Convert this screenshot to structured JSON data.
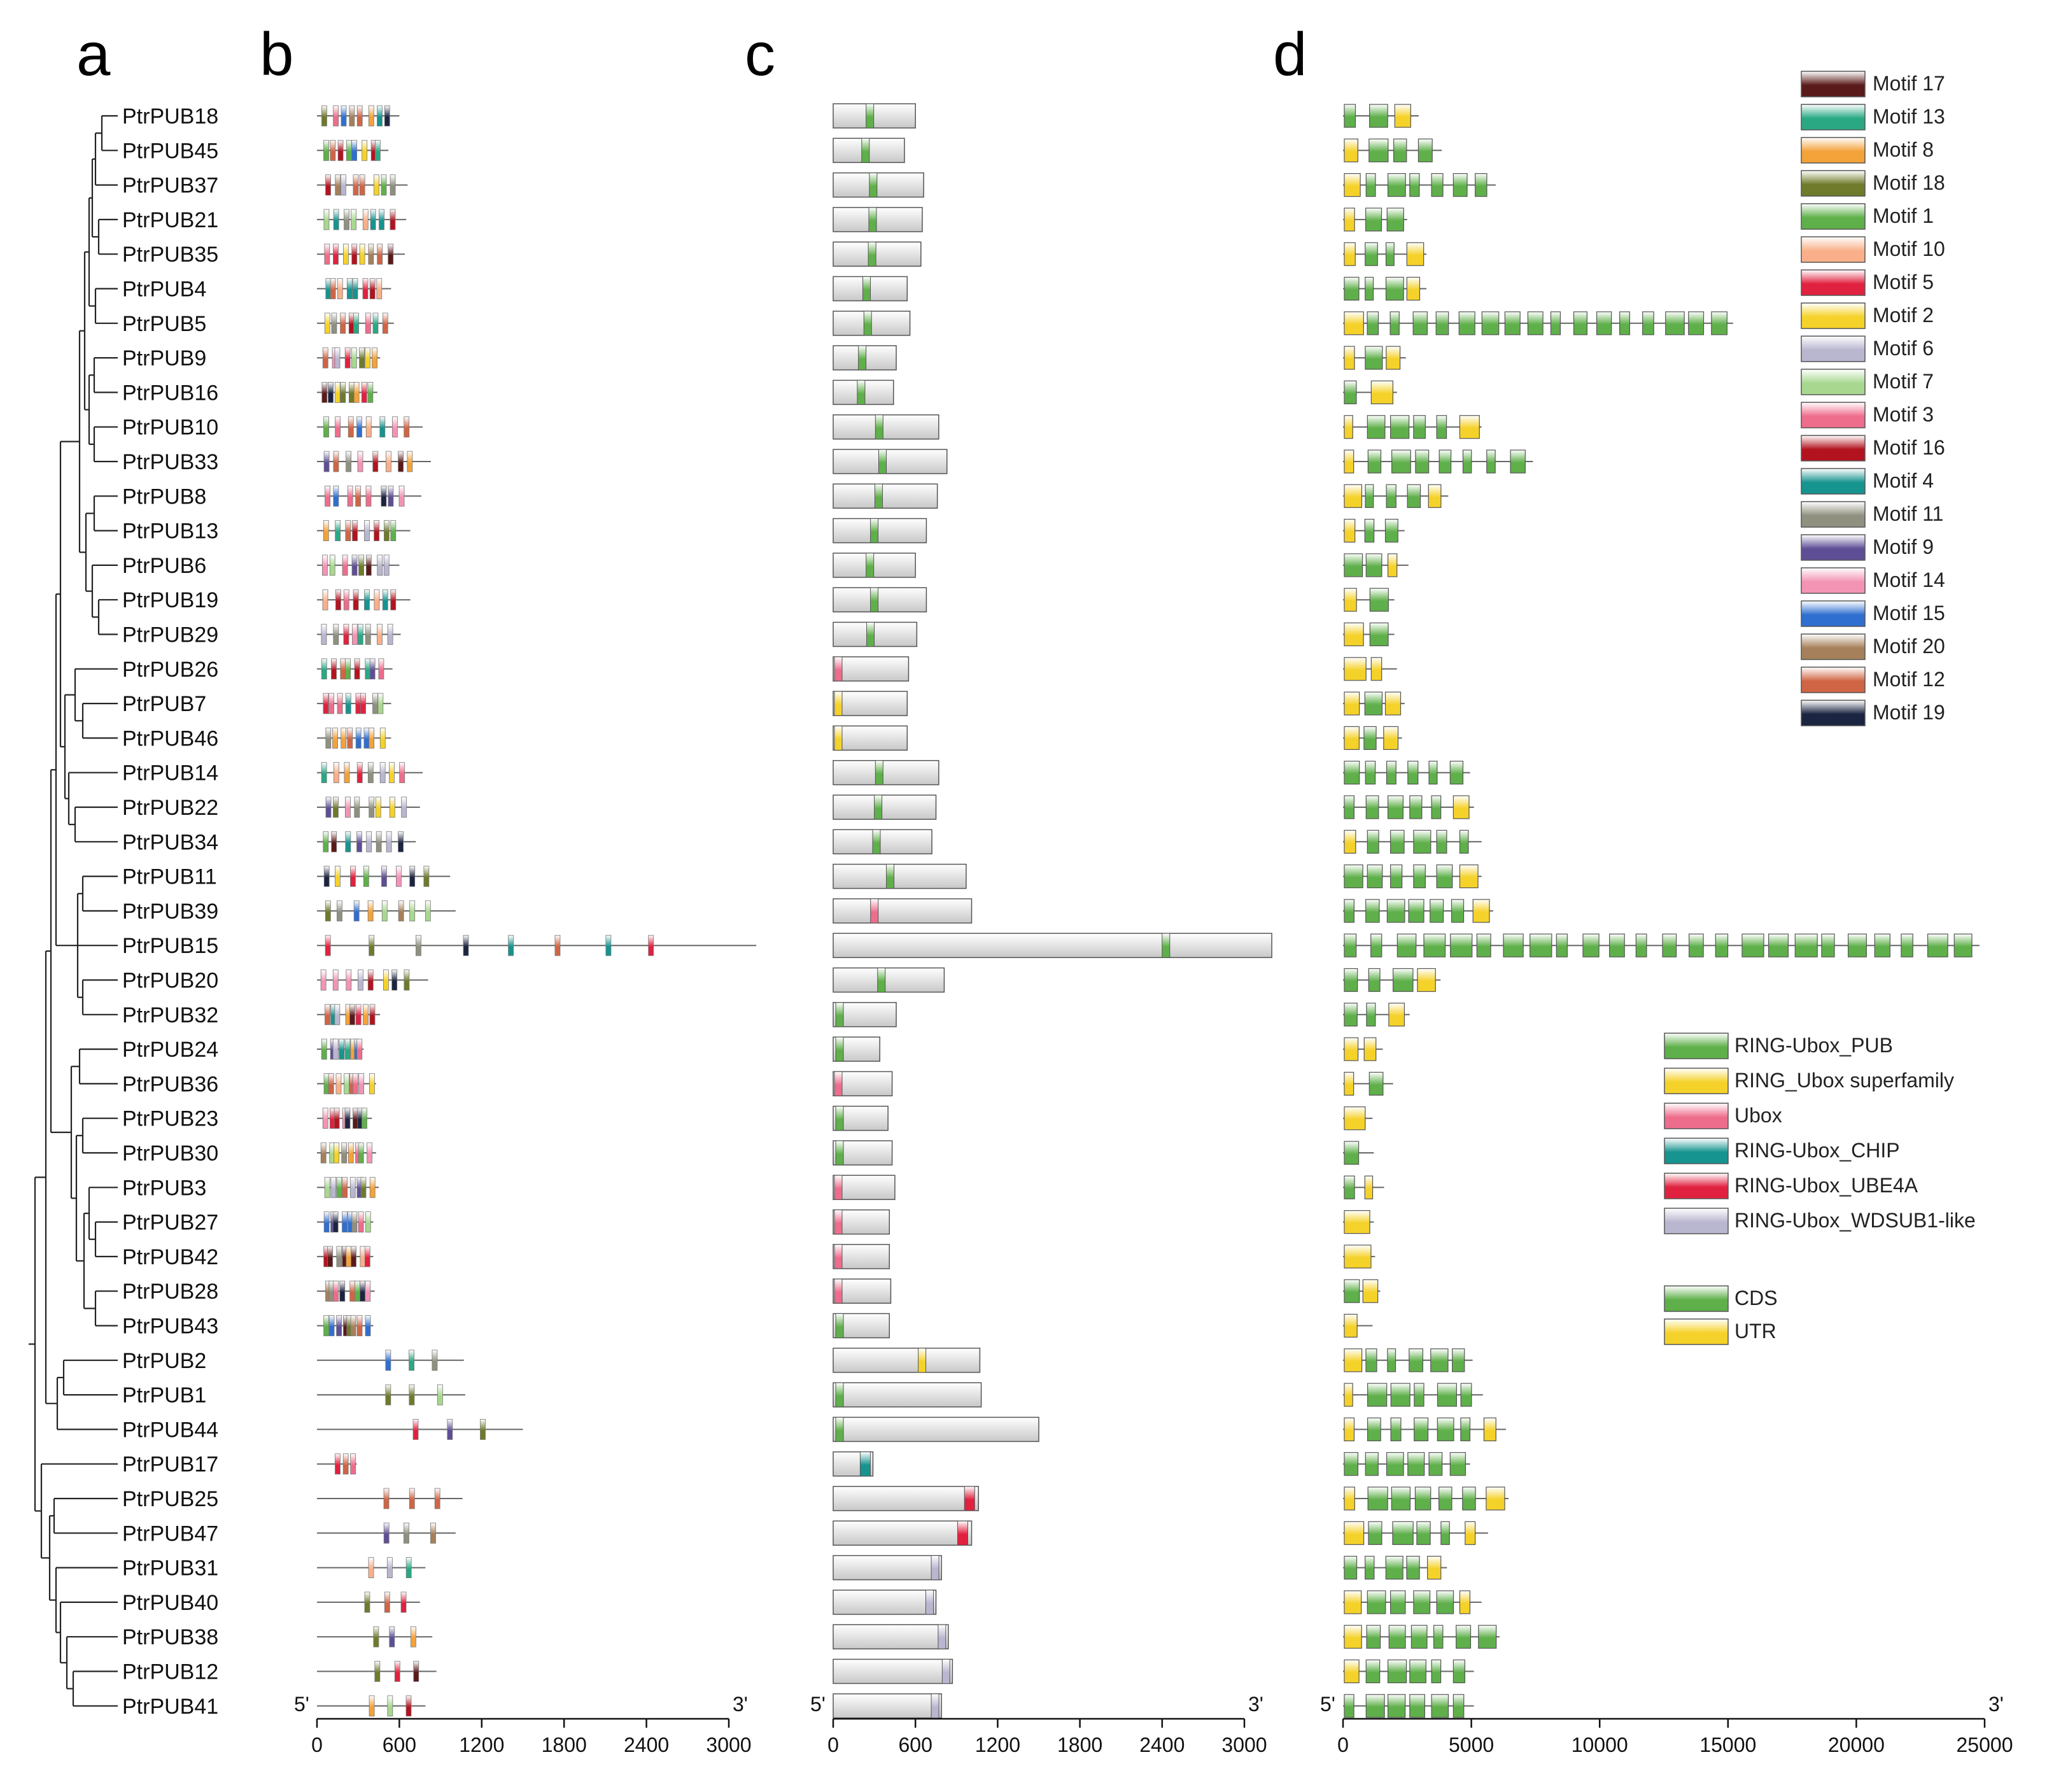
{
  "panels": [
    "a",
    "b",
    "c",
    "d"
  ],
  "genes": [
    "PtrPUB18",
    "PtrPUB45",
    "PtrPUB37",
    "PtrPUB21",
    "PtrPUB35",
    "PtrPUB4",
    "PtrPUB5",
    "PtrPUB9",
    "PtrPUB16",
    "PtrPUB10",
    "PtrPUB33",
    "PtrPUB8",
    "PtrPUB13",
    "PtrPUB6",
    "PtrPUB19",
    "PtrPUB29",
    "PtrPUB26",
    "PtrPUB7",
    "PtrPUB46",
    "PtrPUB14",
    "PtrPUB22",
    "PtrPUB34",
    "PtrPUB11",
    "PtrPUB39",
    "PtrPUB15",
    "PtrPUB20",
    "PtrPUB32",
    "PtrPUB24",
    "PtrPUB36",
    "PtrPUB23",
    "PtrPUB30",
    "PtrPUB3",
    "PtrPUB27",
    "PtrPUB42",
    "PtrPUB28",
    "PtrPUB43",
    "PtrPUB2",
    "PtrPUB1",
    "PtrPUB44",
    "PtrPUB17",
    "PtrPUB25",
    "PtrPUB47",
    "PtrPUB31",
    "PtrPUB40",
    "PtrPUB38",
    "PtrPUB12",
    "PtrPUB41"
  ],
  "protein_lengths": [
    600,
    520,
    660,
    650,
    640,
    540,
    560,
    460,
    440,
    770,
    830,
    760,
    680,
    600,
    680,
    610,
    550,
    540,
    540,
    770,
    750,
    720,
    970,
    1010,
    3200,
    810,
    460,
    340,
    430,
    400,
    430,
    450,
    410,
    410,
    420,
    410,
    1070,
    1080,
    1500,
    290,
    1060,
    1010,
    790,
    750,
    840,
    870,
    790
  ],
  "gene_lengths": [
    2950,
    3850,
    5950,
    2500,
    3250,
    3250,
    15200,
    2450,
    2100,
    5400,
    7400,
    4100,
    2400,
    2550,
    2000,
    2000,
    2100,
    2400,
    2300,
    4950,
    5100,
    5400,
    5400,
    5850,
    24800,
    3800,
    2600,
    1550,
    1950,
    1150,
    1200,
    1600,
    1200,
    1250,
    1450,
    1150,
    5050,
    5450,
    6350,
    4950,
    6450,
    5650,
    4050,
    5400,
    6100,
    5100,
    5100
  ],
  "motif_legend": [
    {
      "name": "Motif 17",
      "color": "#5a1a1a"
    },
    {
      "name": "Motif 13",
      "color": "#2aa884"
    },
    {
      "name": "Motif 8",
      "color": "#f4a23a"
    },
    {
      "name": "Motif 18",
      "color": "#6f7a2a"
    },
    {
      "name": "Motif 1",
      "color": "#5fb04a"
    },
    {
      "name": "Motif 10",
      "color": "#f9b08a"
    },
    {
      "name": "Motif 5",
      "color": "#e0213f"
    },
    {
      "name": "Motif 2",
      "color": "#f5d22a"
    },
    {
      "name": "Motif 6",
      "color": "#b9b6d0"
    },
    {
      "name": "Motif 7",
      "color": "#a8d890"
    },
    {
      "name": "Motif 3",
      "color": "#ee6d8c"
    },
    {
      "name": "Motif 16",
      "color": "#b3131f"
    },
    {
      "name": "Motif 4",
      "color": "#16948f"
    },
    {
      "name": "Motif 11",
      "color": "#909080"
    },
    {
      "name": "Motif 9",
      "color": "#5e4e96"
    },
    {
      "name": "Motif 14",
      "color": "#f394b4"
    },
    {
      "name": "Motif 15",
      "color": "#2f6fd0"
    },
    {
      "name": "Motif 20",
      "color": "#a6805a"
    },
    {
      "name": "Motif 12",
      "color": "#d06545"
    },
    {
      "name": "Motif 19",
      "color": "#1b2440"
    }
  ],
  "domain_legend": [
    {
      "name": "RING-Ubox_PUB",
      "color": "#5fb04a"
    },
    {
      "name": "RING_Ubox superfamily",
      "color": "#f5d22a"
    },
    {
      "name": "Ubox",
      "color": "#ee6d8c"
    },
    {
      "name": "RING-Ubox_CHIP",
      "color": "#16948f"
    },
    {
      "name": "RING-Ubox_UBE4A",
      "color": "#e0213f"
    },
    {
      "name": "RING-Ubox_WDSUB1-like",
      "color": "#b9b6d0"
    }
  ],
  "structure_legend": [
    {
      "name": "CDS",
      "color": "#5fb04a"
    },
    {
      "name": "UTR",
      "color": "#f5d22a"
    }
  ],
  "axis_b": {
    "start": "5'",
    "end": "3'",
    "ticks": [
      "0",
      "600",
      "1200",
      "1800",
      "2400",
      "3000"
    ]
  },
  "axis_c": {
    "start": "5'",
    "end": "3'",
    "ticks": [
      "0",
      "600",
      "1200",
      "1800",
      "2400",
      "3000"
    ]
  },
  "axis_d": {
    "start": "5'",
    "end": "3'",
    "ticks": [
      "0",
      "5000",
      "10000",
      "15000",
      "20000",
      "25000"
    ]
  }
}
